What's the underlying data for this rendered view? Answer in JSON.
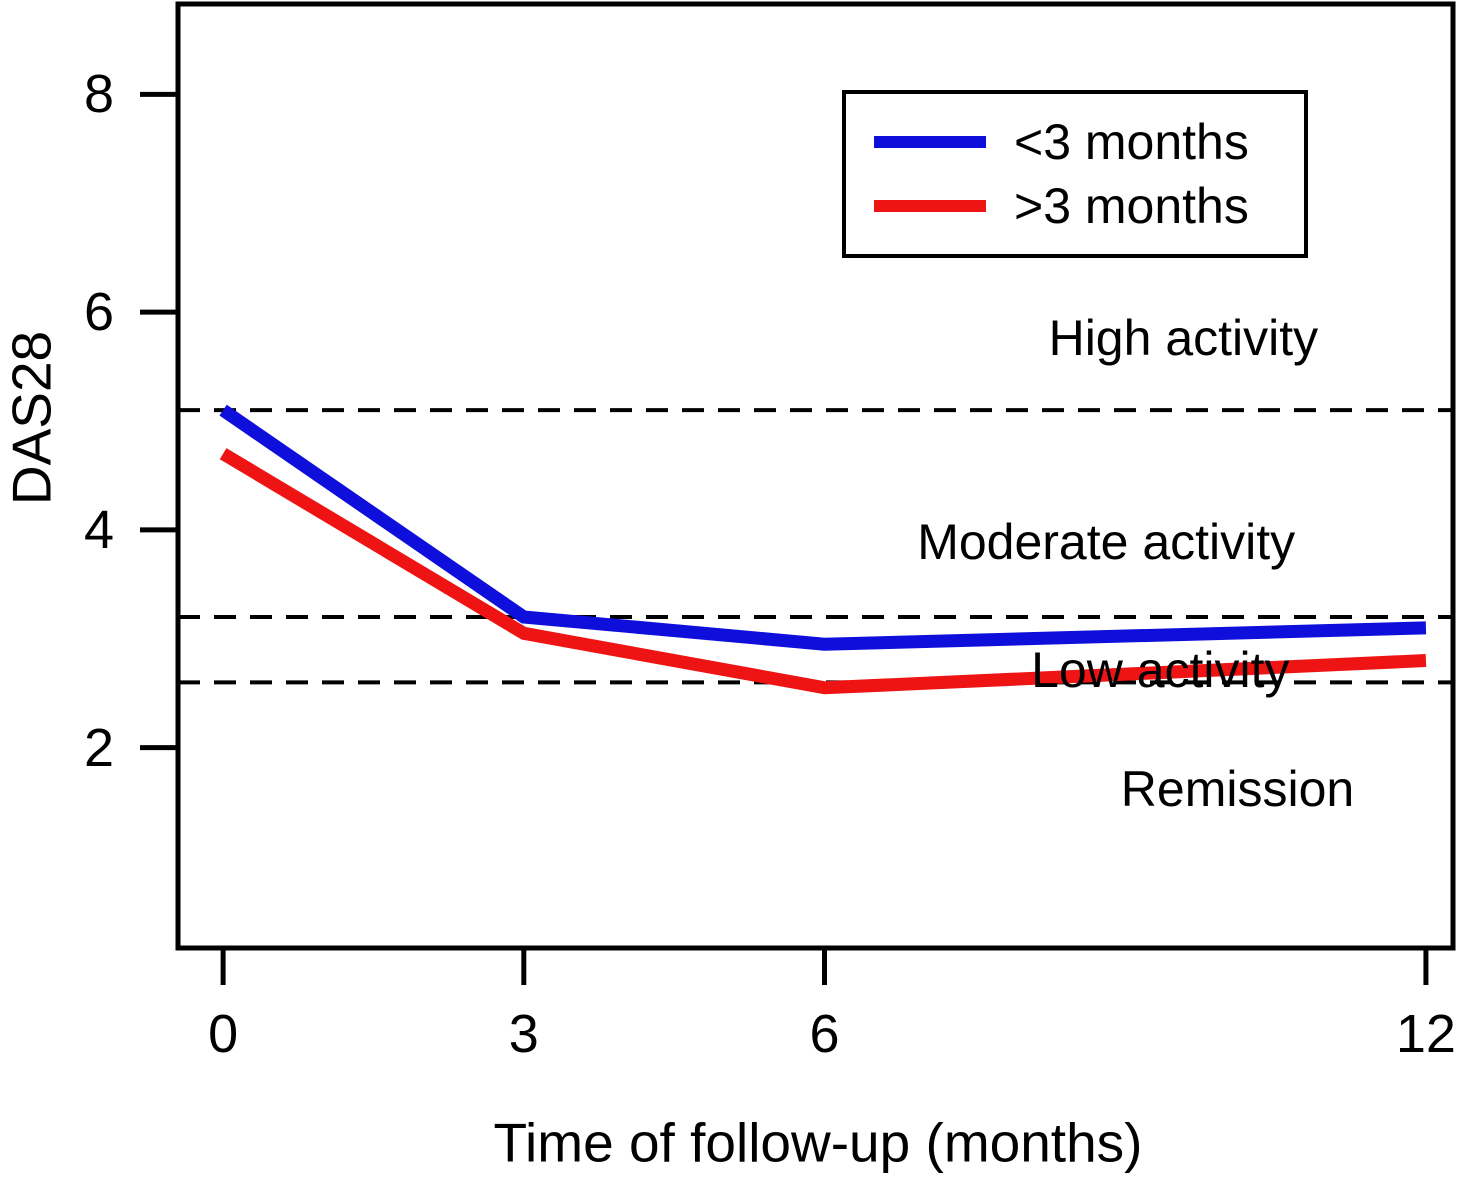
{
  "chart_data": {
    "type": "line",
    "title": "",
    "xlabel": "Time of follow-up (months)",
    "ylabel": "DAS28",
    "x": [
      0,
      3,
      6,
      12
    ],
    "series": [
      {
        "name": "<3 months",
        "color": "#0F0FDC",
        "values": [
          5.1,
          3.2,
          2.95,
          3.1
        ]
      },
      {
        "name": ">3 months",
        "color": "#EE1414",
        "values": [
          4.7,
          3.05,
          2.55,
          2.8
        ]
      }
    ],
    "thresholds": [
      {
        "value": 5.1,
        "style": "dashed"
      },
      {
        "value": 3.2,
        "style": "dashed"
      },
      {
        "value": 2.6,
        "style": "dashed"
      }
    ],
    "annotations": [
      {
        "text": "High activity",
        "x": 9.58,
        "y": 5.76
      },
      {
        "text": "Moderate activity",
        "x": 8.81,
        "y": 3.89
      },
      {
        "text": "Low activity",
        "x": 9.35,
        "y": 2.71
      },
      {
        "text": "Remission",
        "x": 10.12,
        "y": 1.62
      }
    ],
    "xticks": [
      {
        "value": 0,
        "label": "0"
      },
      {
        "value": 3,
        "label": "3"
      },
      {
        "value": 6,
        "label": "6"
      },
      {
        "value": 12,
        "label": "12"
      }
    ],
    "yticks": [
      {
        "value": 8,
        "label": "8"
      },
      {
        "value": 6,
        "label": "6"
      },
      {
        "value": 4,
        "label": "4"
      },
      {
        "value": 2,
        "label": "2"
      }
    ],
    "xlim": [
      -0.45,
      12.27
    ],
    "ylim": [
      0.16,
      8.83
    ],
    "grid": false,
    "legend_position": "top-right",
    "axis_color": "#000000"
  }
}
